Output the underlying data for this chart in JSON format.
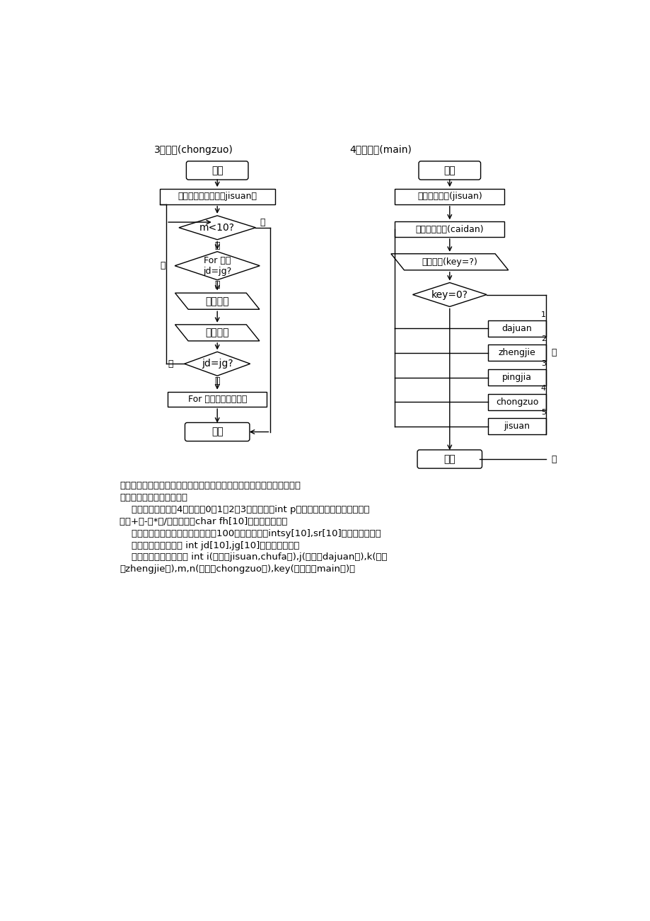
{
  "bg_color": "#ffffff",
  "title3": "3、重做(chongzuo)",
  "title4": "4、主函数(main)",
  "text_color": "#000000",
  "para_lines": [
    "由于其它四个函数较为简单或者和某些函数相似，这里就不再重复说明。",
    "在程序中用到的数据说明：",
    "    运算符：随机产生4个数字（0、1、2、3），定义为int p（全局变量），再转换为运算",
    "符（+、-、*、/），定义为char fh[10]（全局变量）．",
    "    运算数：随机产生两个运算数，对100取余。定义为intsy[10],sr[10]（全局变量）．",
    "    结果和答案：定义为 int jd[10],jg[10]（全局变量）．",
    "    循环控制变量：定义为 int i(函数（jisuan,chufa）),j(函数（dajuan）),k(函数",
    "（zhengjie）),m,n(函数（chongzuo）),key(主函数（main）)．"
  ]
}
